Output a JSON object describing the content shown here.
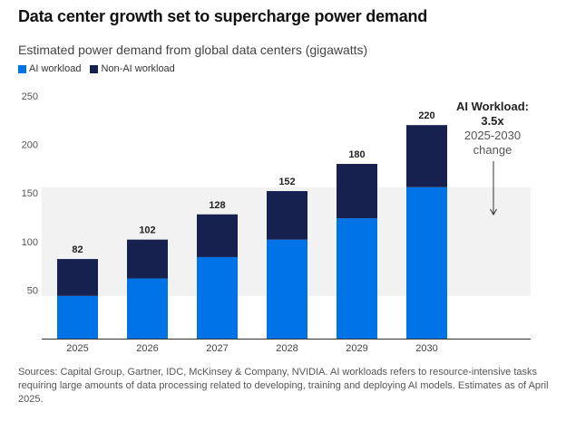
{
  "title": "Data center growth set to supercharge power demand",
  "subtitle": "Estimated power demand from global data centers (gigawatts)",
  "colors": {
    "ai": "#0073e6",
    "non_ai": "#17214f",
    "band": "#f2f2f2"
  },
  "chart_data": {
    "type": "bar",
    "stacked": true,
    "categories": [
      "2025",
      "2026",
      "2027",
      "2028",
      "2029",
      "2030"
    ],
    "series": [
      {
        "name": "AI workload",
        "values": [
          44,
          62,
          84,
          102,
          124,
          156
        ]
      },
      {
        "name": "Non-AI workload",
        "values": [
          38,
          40,
          44,
          50,
          56,
          64
        ]
      }
    ],
    "totals": [
      "82",
      "102",
      "128",
      "152",
      "180",
      "220"
    ],
    "yticks": [
      "50",
      "100",
      "150",
      "200",
      "250"
    ],
    "ylim": [
      0,
      250
    ],
    "legend_position": "top-left",
    "grid": false,
    "annotation": {
      "line1": "AI Workload:",
      "line2": "3.5x",
      "line3": "2025-2030",
      "line4": "change"
    }
  },
  "sources": "Sources: Capital Group, Gartner, IDC, McKinsey & Company, NVIDIA. AI workloads refers to resource-intensive tasks requiring large amounts of data processing related to developing, training and deploying AI models. Estimates as of April 2025."
}
